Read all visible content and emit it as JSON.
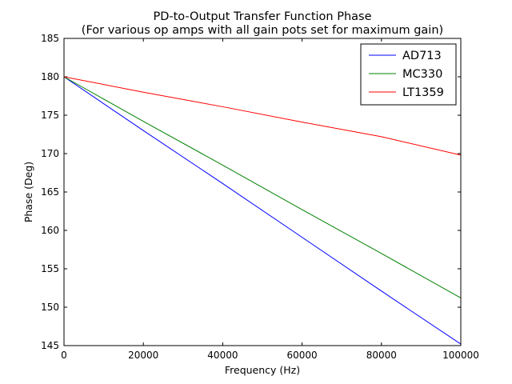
{
  "chart_data": {
    "type": "line",
    "title": "PD-to-Output Transfer Function Phase",
    "subtitle": "(For various op amps with all gain pots set for maximum gain)",
    "xlabel": "Frequency (Hz)",
    "ylabel": "Phase (Deg)",
    "xlim": [
      0,
      100000
    ],
    "ylim": [
      145,
      185
    ],
    "xticks": [
      0,
      20000,
      40000,
      60000,
      80000,
      100000
    ],
    "yticks": [
      145,
      150,
      155,
      160,
      165,
      170,
      175,
      180,
      185
    ],
    "grid": false,
    "legend_position": "top-right",
    "x": [
      0,
      20000,
      40000,
      60000,
      80000,
      100000
    ],
    "series": [
      {
        "name": "AD713",
        "color": "#0000ff",
        "values": [
          180,
          173.0,
          166.1,
          159.1,
          152.1,
          145.2
        ]
      },
      {
        "name": "MC330",
        "color": "#008000",
        "values": [
          180,
          174.2,
          168.5,
          162.7,
          157.0,
          151.2
        ]
      },
      {
        "name": "LT1359",
        "color": "#ff0000",
        "values": [
          180,
          178.0,
          176.1,
          174.1,
          172.2,
          169.8
        ]
      }
    ]
  }
}
